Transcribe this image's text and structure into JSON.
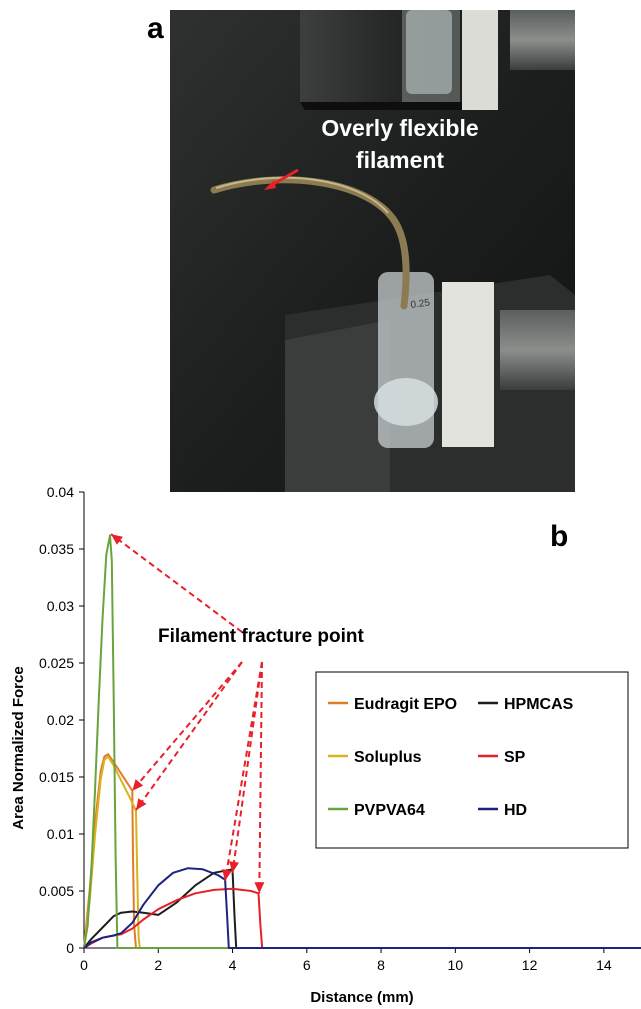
{
  "panel_a": {
    "label": "a",
    "annotation_line1": "Overly flexible",
    "annotation_line2": "filament",
    "tube_marking": "0.25"
  },
  "panel_b": {
    "label": "b",
    "annotation": "Filament fracture point"
  },
  "chart_data": {
    "type": "line",
    "title": "",
    "xlabel": "Distance (mm)",
    "ylabel": "Area Normalized Force",
    "xlim": [
      0,
      15
    ],
    "ylim": [
      0,
      0.04
    ],
    "xticks": [
      0,
      2,
      4,
      6,
      8,
      10,
      12,
      14
    ],
    "yticks": [
      0,
      0.005,
      0.01,
      0.015,
      0.02,
      0.025,
      0.03,
      0.035,
      0.04
    ],
    "xtick_labels": [
      "0",
      "2",
      "4",
      "6",
      "8",
      "10",
      "12",
      "14"
    ],
    "ytick_labels": [
      "0",
      "0.005",
      "0.01",
      "0.015",
      "0.02",
      "0.025",
      "0.03",
      "0.035",
      "0.04"
    ],
    "grid": false,
    "legend_position": "right",
    "legend_columns": 2,
    "series": [
      {
        "name": "Eudragit EPO",
        "color": "#e07b28",
        "x": [
          0,
          0.15,
          0.3,
          0.45,
          0.55,
          0.65,
          0.8,
          1.0,
          1.2,
          1.3,
          1.32,
          1.35,
          1.4,
          15
        ],
        "y": [
          0,
          0.005,
          0.011,
          0.0155,
          0.0168,
          0.017,
          0.0163,
          0.0153,
          0.0143,
          0.0138,
          0.008,
          0.002,
          0,
          0
        ]
      },
      {
        "name": "HPMCAS",
        "color": "#1e1e1e",
        "x": [
          0,
          0.2,
          0.5,
          0.8,
          1.0,
          1.3,
          1.6,
          2.0,
          2.5,
          3.0,
          3.5,
          4.0,
          4.05,
          4.1,
          15
        ],
        "y": [
          0,
          0.0008,
          0.0018,
          0.0028,
          0.0031,
          0.0032,
          0.0031,
          0.0029,
          0.004,
          0.0055,
          0.0066,
          0.0069,
          0.003,
          0,
          0
        ]
      },
      {
        "name": "Soluplus",
        "color": "#d9b21f",
        "x": [
          0,
          0.15,
          0.3,
          0.45,
          0.55,
          0.65,
          0.8,
          1.0,
          1.2,
          1.35,
          1.4,
          1.43,
          1.47,
          1.5,
          15
        ],
        "y": [
          0,
          0.004,
          0.01,
          0.0148,
          0.0165,
          0.0168,
          0.016,
          0.0147,
          0.0134,
          0.0124,
          0.012,
          0.007,
          0.001,
          0,
          0
        ]
      },
      {
        "name": "SP",
        "color": "#e8202a",
        "x": [
          0,
          0.2,
          0.5,
          0.8,
          1.0,
          1.3,
          1.6,
          2.0,
          2.5,
          3.0,
          3.5,
          4.0,
          4.5,
          4.7,
          4.75,
          4.8,
          15
        ],
        "y": [
          0,
          0.0004,
          0.0009,
          0.0011,
          0.0012,
          0.0017,
          0.0025,
          0.0034,
          0.0042,
          0.0048,
          0.0051,
          0.0052,
          0.005,
          0.0048,
          0.002,
          0,
          0
        ]
      },
      {
        "name": "PVPVA64",
        "color": "#69a33e",
        "x": [
          0,
          0.1,
          0.2,
          0.3,
          0.4,
          0.5,
          0.6,
          0.7,
          0.75,
          0.8,
          0.85,
          0.9,
          15
        ],
        "y": [
          0,
          0.002,
          0.007,
          0.014,
          0.022,
          0.029,
          0.0345,
          0.0362,
          0.034,
          0.022,
          0.008,
          0,
          0
        ]
      },
      {
        "name": "HD",
        "color": "#1c2380",
        "x": [
          0,
          0.2,
          0.5,
          0.8,
          1.0,
          1.3,
          1.6,
          2.0,
          2.4,
          2.8,
          3.2,
          3.6,
          3.8,
          3.85,
          3.9,
          15
        ],
        "y": [
          0,
          0.0005,
          0.0009,
          0.0011,
          0.0013,
          0.0022,
          0.0038,
          0.0055,
          0.0066,
          0.007,
          0.0069,
          0.0064,
          0.006,
          0.003,
          0,
          0
        ]
      }
    ]
  }
}
